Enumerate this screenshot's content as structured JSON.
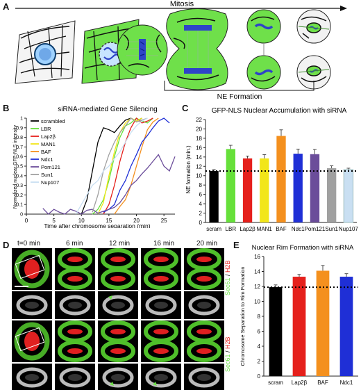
{
  "panelA": {
    "letter": "A",
    "mitosis_label": "Mitosis",
    "ne_label": "NE Formation"
  },
  "panelB": {
    "letter": "B",
    "title": "siRNA-mediated Gene Silencing",
    "xlabel": "Time after chromosome separation (min)",
    "ylabel": "Normalized nuclear GFP-NLS intensity",
    "xticks": [
      "0",
      "5",
      "10",
      "15",
      "20",
      "25"
    ],
    "yticks": [
      "0",
      "0.1",
      "0.2",
      "0.3",
      "0.4",
      "0.5",
      "0.6",
      "0.7",
      "0.8",
      "0.9",
      "1"
    ],
    "legend": [
      "scrambled",
      "LBR",
      "Lap2β",
      "MAN1",
      "BAF",
      "Ndc1",
      "Pom121",
      "Sun1",
      "Nup107"
    ]
  },
  "panelC": {
    "letter": "C",
    "title": "GFP-NLS Nuclear Accumulation with siRNA",
    "ylabel": "NE formation (min.)",
    "yticks": [
      "0",
      "2",
      "4",
      "6",
      "8",
      "10",
      "12",
      "14",
      "16",
      "18",
      "20",
      "22"
    ]
  },
  "panelD": {
    "letter": "D",
    "timepoints": [
      "t=0 min",
      "6 min",
      "12 min",
      "16 min",
      "20 min"
    ],
    "row1_label": "Scram. siRNA",
    "row2_label": "Lap2β siRNA",
    "stain_label_a": "Sec61",
    "stain_label_b": "H2B"
  },
  "panelE": {
    "letter": "E",
    "title": "Nuclear Rim Formation with siRNA",
    "ylabel": "Chromosome Separation to Rim Formation",
    "yticks": [
      "0",
      "2",
      "4",
      "6",
      "8",
      "10",
      "12",
      "14",
      "16"
    ]
  },
  "colors": {
    "scrambled": "#000000",
    "LBR": "#66e03a",
    "Lap2β": "#e5201c",
    "MAN1": "#f2e619",
    "BAF": "#f4901e",
    "Ndc1": "#1f2fd6",
    "Pom121": "#6b4d9a",
    "Sun1": "#a0a0a0",
    "Nup107": "#c9dff2",
    "cell_green": "#6fe04a",
    "chromatin_blue": "#2e44c8"
  },
  "chart_data": [
    {
      "type": "line",
      "panel": "B",
      "title": "siRNA-mediated Gene Silencing",
      "xlabel": "Time after chromosome separation (min)",
      "ylabel": "Normalized nuclear GFP-NLS intensity",
      "xlim": [
        0,
        27
      ],
      "ylim": [
        0,
        1
      ],
      "legend_position": "top-left",
      "series": [
        {
          "name": "scrambled",
          "x": [
            10,
            11,
            12,
            13,
            14,
            15,
            16,
            17,
            18,
            19,
            20,
            21
          ],
          "y": [
            0.0,
            0.15,
            0.45,
            0.75,
            0.9,
            0.88,
            0.85,
            0.92,
            0.98,
            1.0,
            0.97,
            1.0
          ]
        },
        {
          "name": "LBR",
          "x": [
            12,
            13,
            14,
            15,
            16,
            17,
            18,
            19,
            20,
            21,
            22,
            23
          ],
          "y": [
            0.0,
            0.05,
            0.15,
            0.35,
            0.6,
            0.8,
            0.92,
            0.95,
            1.0,
            0.97,
            0.95,
            1.0
          ]
        },
        {
          "name": "Lap2β",
          "x": [
            14,
            15,
            16,
            17,
            18,
            19,
            20,
            21,
            22,
            23
          ],
          "y": [
            0.0,
            0.1,
            0.3,
            0.55,
            0.75,
            0.9,
            1.0,
            0.95,
            0.97,
            1.0
          ]
        },
        {
          "name": "MAN1",
          "x": [
            13,
            14,
            15,
            16,
            17,
            18,
            19,
            20,
            21
          ],
          "y": [
            0.0,
            0.12,
            0.4,
            0.65,
            0.85,
            0.95,
            1.0,
            0.97,
            1.0
          ]
        },
        {
          "name": "BAF",
          "x": [
            16,
            17,
            18,
            19,
            20,
            21,
            22,
            23,
            24
          ],
          "y": [
            0.0,
            0.08,
            0.15,
            0.3,
            0.5,
            0.7,
            0.88,
            0.96,
            1.0
          ]
        },
        {
          "name": "Ndc1",
          "x": [
            14,
            15,
            16,
            17,
            18,
            19,
            20,
            21,
            22,
            23,
            24,
            25,
            26
          ],
          "y": [
            0.02,
            0.05,
            0.1,
            0.25,
            0.35,
            0.5,
            0.62,
            0.75,
            0.82,
            0.9,
            0.97,
            1.0,
            0.95
          ]
        },
        {
          "name": "Pom121",
          "x": [
            3,
            4,
            5,
            6,
            7,
            8,
            9,
            10,
            11,
            12,
            13,
            14,
            15,
            16,
            17,
            18,
            19,
            20,
            21,
            22,
            23,
            24,
            25,
            26,
            27
          ],
          "y": [
            0.06,
            0.0,
            0.05,
            0.02,
            0.0,
            0.05,
            0.03,
            0.0,
            0.04,
            0.05,
            0.01,
            0.03,
            0.05,
            0.07,
            0.12,
            0.2,
            0.3,
            0.35,
            0.42,
            0.48,
            0.55,
            0.62,
            0.5,
            0.45,
            0.6
          ]
        },
        {
          "name": "Sun1",
          "x": [
            12,
            13,
            14,
            15,
            16,
            17,
            18,
            19,
            20,
            21,
            22
          ],
          "y": [
            0.02,
            0.2,
            0.45,
            0.62,
            0.75,
            0.85,
            0.92,
            1.0,
            0.96,
            0.98,
            1.0
          ]
        },
        {
          "name": "Nup107",
          "x": [
            9,
            10,
            11,
            12,
            13,
            14,
            15,
            16,
            17,
            18,
            19,
            20,
            21,
            22
          ],
          "y": [
            0.0,
            0.1,
            0.2,
            0.3,
            0.35,
            0.45,
            0.5,
            0.58,
            0.65,
            0.75,
            0.85,
            0.92,
            0.97,
            1.0
          ]
        }
      ]
    },
    {
      "type": "bar",
      "panel": "C",
      "title": "GFP-NLS Nuclear Accumulation with siRNA",
      "ylabel": "NE formation (min.)",
      "ylim": [
        0,
        22
      ],
      "categories": [
        "scram",
        "LBR",
        "Lap2β",
        "MAN1",
        "BAF",
        "Ndc1",
        "Pom121",
        "Sun1",
        "Nup107"
      ],
      "values": [
        11.0,
        15.7,
        13.7,
        13.7,
        18.5,
        14.7,
        14.6,
        11.6,
        11.3
      ],
      "errors": [
        0.3,
        0.8,
        0.5,
        0.8,
        1.3,
        1.0,
        1.0,
        0.5,
        0.3
      ],
      "reference_line": 11.0
    },
    {
      "type": "bar",
      "panel": "E",
      "title": "Nuclear Rim Formation with siRNA",
      "ylabel": "Chromosome Separation to Rim Formation",
      "ylim": [
        0,
        16
      ],
      "categories": [
        "scram",
        "Lap2β",
        "BAF",
        "Ndc1"
      ],
      "values": [
        11.9,
        13.3,
        14.1,
        13.3
      ],
      "errors": [
        0.3,
        0.3,
        0.7,
        0.4
      ],
      "reference_line": 11.9
    }
  ]
}
